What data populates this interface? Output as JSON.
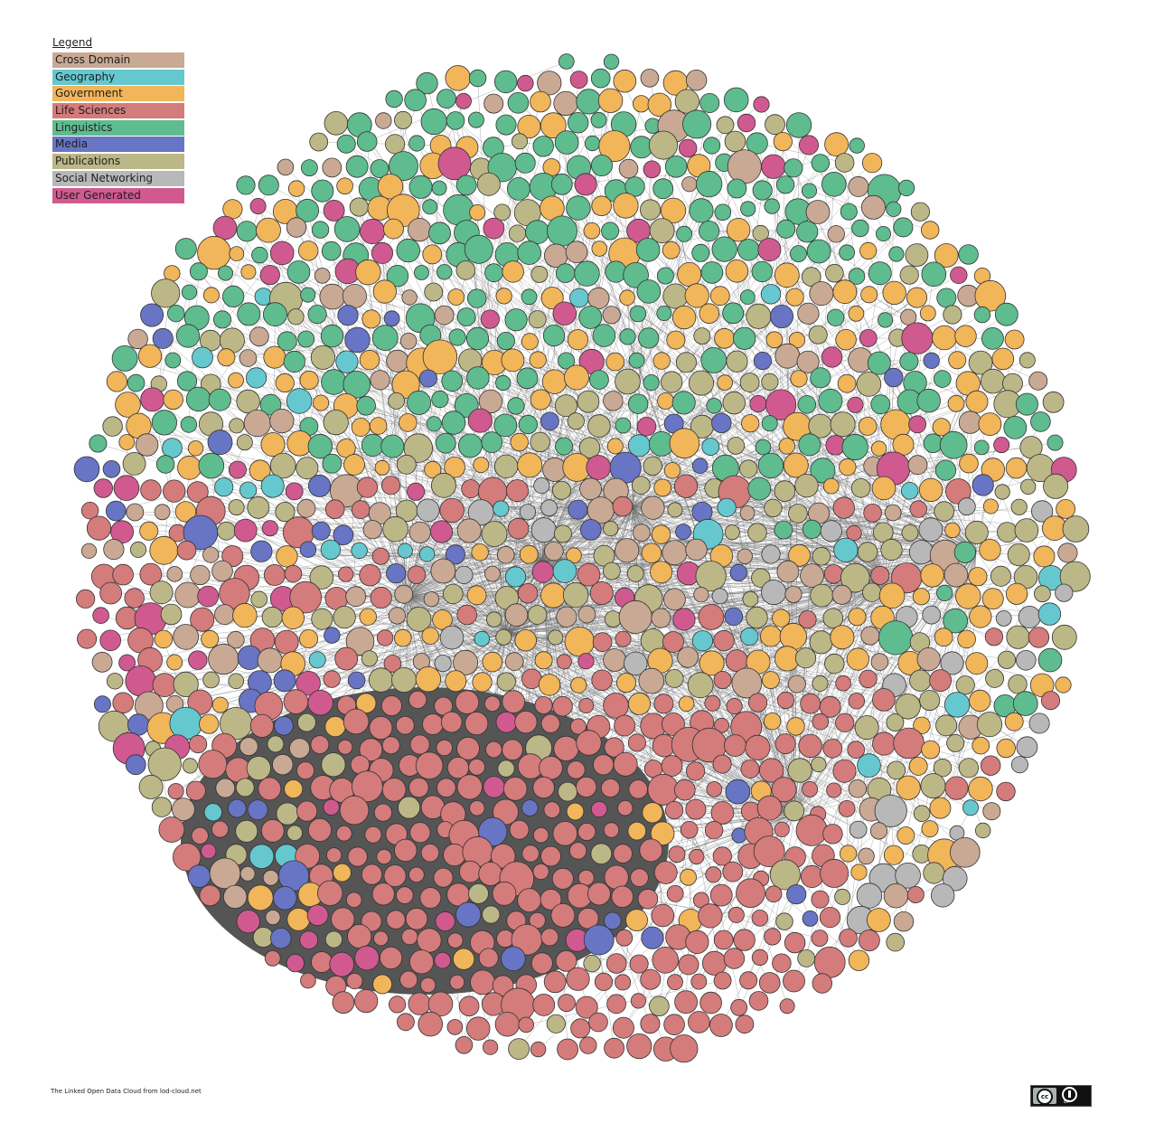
{
  "legend": {
    "title": "Legend",
    "items": [
      {
        "label": "Cross Domain",
        "color": "#c9a994"
      },
      {
        "label": "Geography",
        "color": "#66c8cf"
      },
      {
        "label": "Government",
        "color": "#f1b55a"
      },
      {
        "label": "Life Sciences",
        "color": "#d47b7b"
      },
      {
        "label": "Linguistics",
        "color": "#5ebc8f"
      },
      {
        "label": "Media",
        "color": "#6874c4"
      },
      {
        "label": "Publications",
        "color": "#bcb786"
      },
      {
        "label": "Social Networking",
        "color": "#b8b8b8"
      },
      {
        "label": "User Generated",
        "color": "#d05a8f"
      }
    ]
  },
  "footer": {
    "credit": "The Linked Open Data Cloud from lod-cloud.net",
    "license_badge": {
      "cc": "cc",
      "by": "BY"
    }
  }
}
